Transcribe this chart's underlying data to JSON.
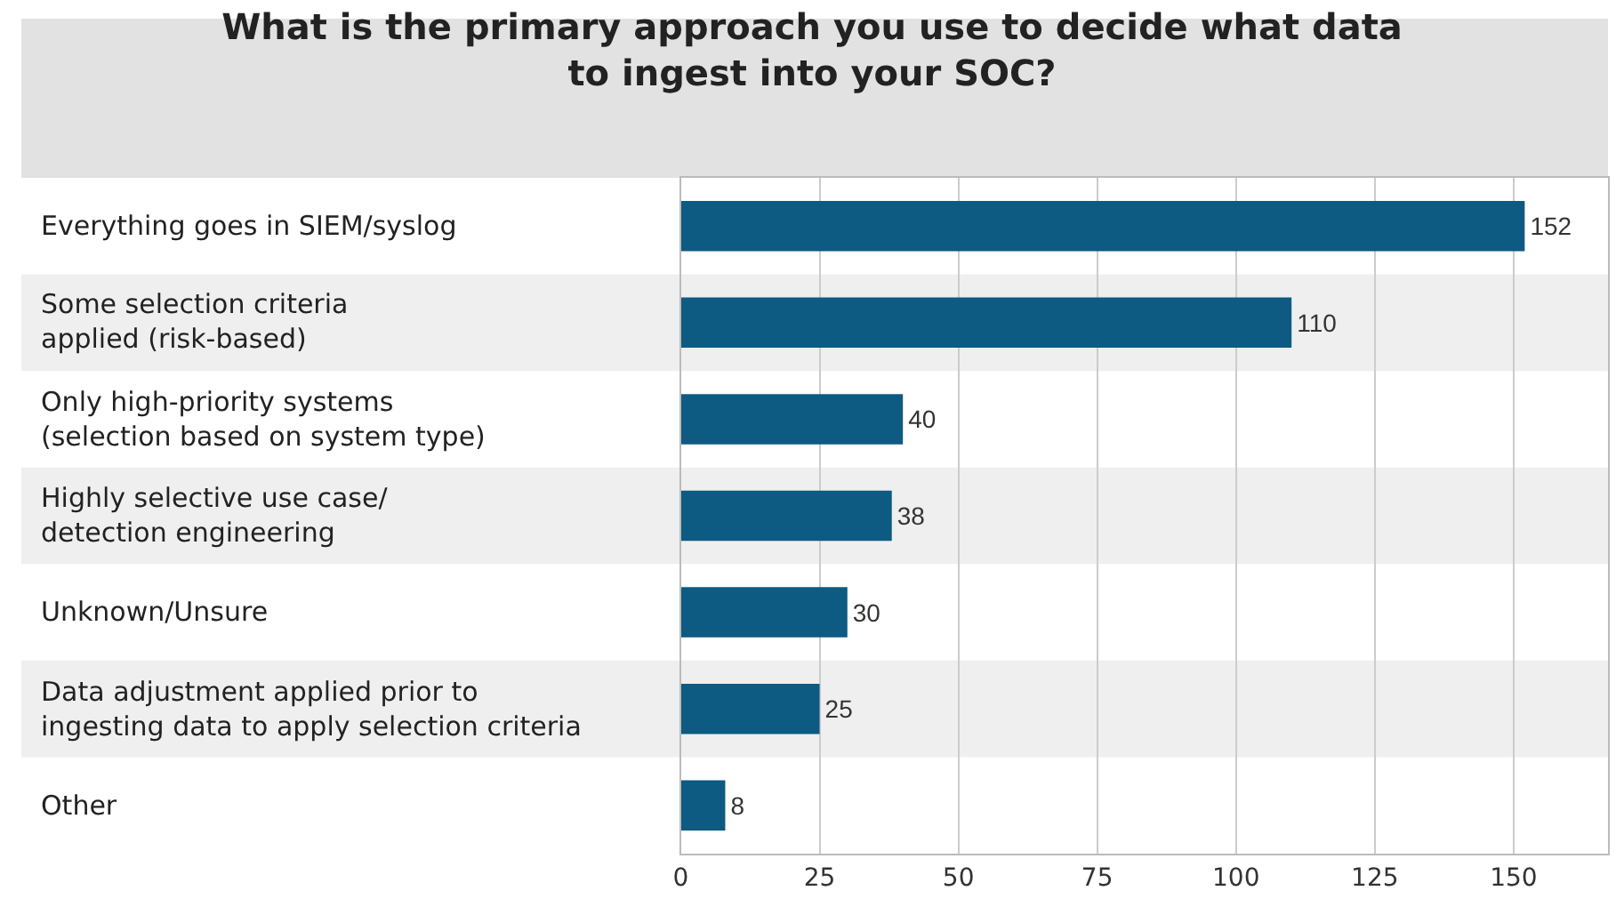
{
  "chart_data": {
    "type": "bar",
    "orientation": "horizontal",
    "title": "What is the primary approach you use to decide what data\nto ingest into your SOC?",
    "categories": [
      "Everything goes in SIEM/syslog",
      "Some selection criteria\napplied (risk-based)",
      "Only high-priority systems\n(selection based on system type)",
      "Highly selective use case/\ndetection engineering",
      "Unknown/Unsure",
      "Data adjustment applied prior to\ningesting data to apply selection criteria",
      "Other"
    ],
    "values": [
      152,
      110,
      40,
      38,
      30,
      25,
      8
    ],
    "color": "#0d5a82",
    "xlim": [
      0,
      167
    ],
    "xticks": [
      0,
      25,
      50,
      75,
      100,
      125,
      150
    ],
    "grid": "x",
    "data_labels": true
  }
}
